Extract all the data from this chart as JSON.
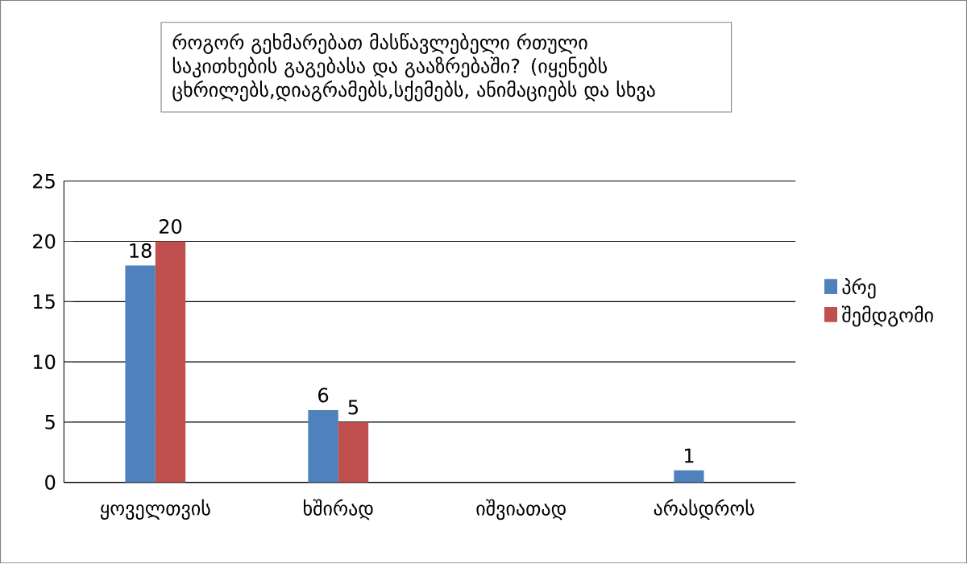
{
  "chart_data": {
    "type": "bar",
    "title": "როგორ გეხმარებათ მასწავლებელი რთული საკითხების გაგებასა და გააზრებაში? (იყენებს ცხრილებს,დიაგრამებს,სქემებს, ანიმაციებს და სხვა",
    "categories": [
      "ყოველთვის",
      "ხშირად",
      "იშვიათად",
      "არასდროს"
    ],
    "series": [
      {
        "name": "პრე",
        "color": "#4f81bd",
        "values": [
          18,
          6,
          null,
          1
        ]
      },
      {
        "name": "შემდგომი",
        "color": "#c0504d",
        "values": [
          20,
          5,
          null,
          null
        ]
      }
    ],
    "ylim": [
      0,
      25
    ],
    "yticks": [
      0,
      5,
      10,
      15,
      20,
      25
    ],
    "grid": "y",
    "legend": "right",
    "data_labels": true
  }
}
